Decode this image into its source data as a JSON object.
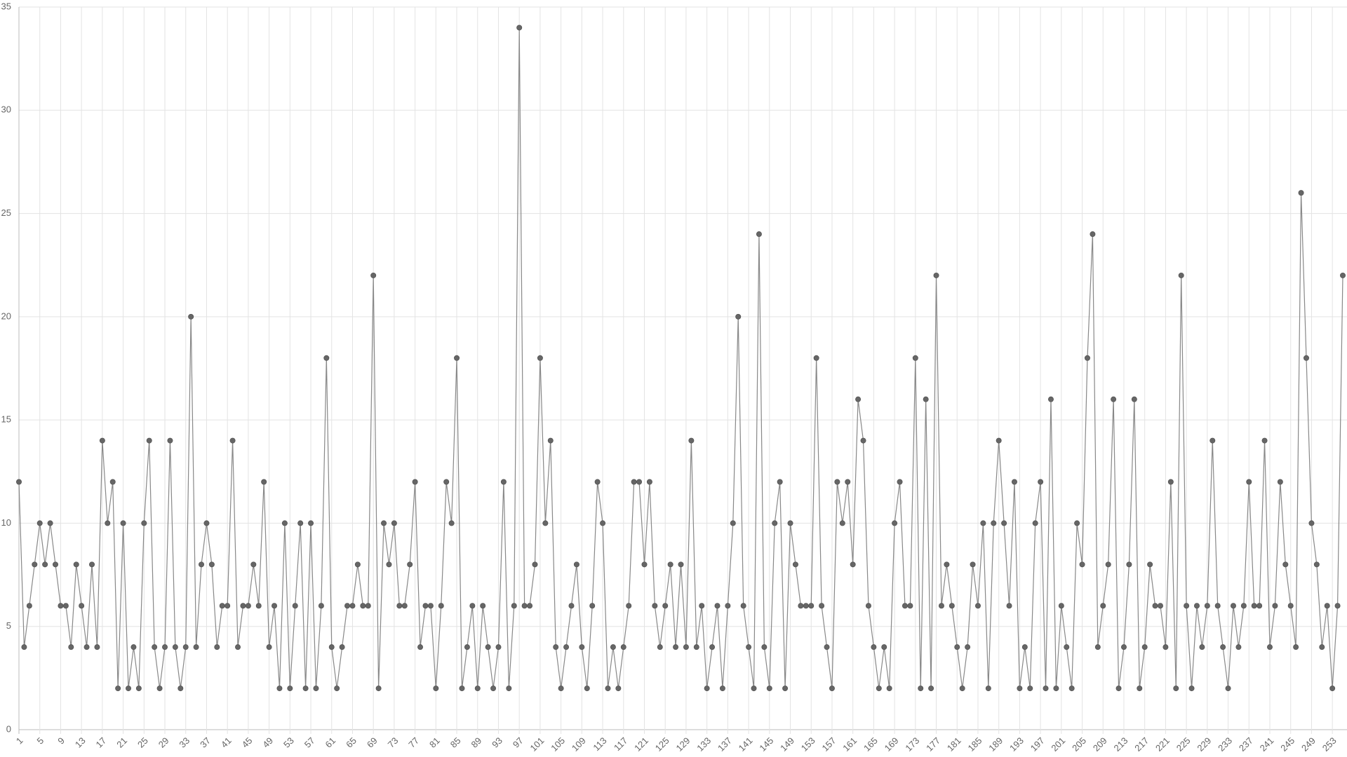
{
  "chart_data": {
    "type": "line",
    "x": [
      1,
      2,
      3,
      4,
      5,
      6,
      7,
      8,
      9,
      10,
      11,
      12,
      13,
      14,
      15,
      16,
      17,
      18,
      19,
      20,
      21,
      22,
      23,
      24,
      25,
      26,
      27,
      28,
      29,
      30,
      31,
      32,
      33,
      34,
      35,
      36,
      37,
      38,
      39,
      40,
      41,
      42,
      43,
      44,
      45,
      46,
      47,
      48,
      49,
      50,
      51,
      52,
      53,
      54,
      55,
      56,
      57,
      58,
      59,
      60,
      61,
      62,
      63,
      64,
      65,
      66,
      67,
      68,
      69,
      70,
      71,
      72,
      73,
      74,
      75,
      76,
      77,
      78,
      79,
      80,
      81,
      82,
      83,
      84,
      85,
      86,
      87,
      88,
      89,
      90,
      91,
      92,
      93,
      94,
      95,
      96,
      97,
      98,
      99,
      100,
      101,
      102,
      103,
      104,
      105,
      106,
      107,
      108,
      109,
      110,
      111,
      112,
      113,
      114,
      115,
      116,
      117,
      118,
      119,
      120,
      121,
      122,
      123,
      124,
      125,
      126,
      127,
      128,
      129,
      130,
      131,
      132,
      133,
      134,
      135,
      136,
      137,
      138,
      139,
      140,
      141,
      142,
      143,
      144,
      145,
      146,
      147,
      148,
      149,
      150,
      151,
      152,
      153,
      154,
      155,
      156,
      157,
      158,
      159,
      160,
      161,
      162,
      163,
      164,
      165,
      166,
      167,
      168,
      169,
      170,
      171,
      172,
      173,
      174,
      175,
      176,
      177,
      178,
      179,
      180,
      181,
      182,
      183,
      184,
      185,
      186,
      187,
      188,
      189,
      190,
      191,
      192,
      193,
      194,
      195,
      196,
      197,
      198,
      199,
      200,
      201,
      202,
      203,
      204,
      205,
      206,
      207,
      208,
      209,
      210,
      211,
      212,
      213,
      214,
      215,
      216,
      217,
      218,
      219,
      220,
      221,
      222,
      223,
      224,
      225,
      226,
      227,
      228,
      229,
      230,
      231,
      232,
      233,
      234,
      235,
      236,
      237,
      238,
      239,
      240,
      241,
      242,
      243,
      244,
      245,
      246,
      247,
      248,
      249,
      250,
      251,
      252,
      253,
      254,
      255
    ],
    "values": [
      12,
      4,
      6,
      8,
      10,
      8,
      10,
      8,
      6,
      6,
      4,
      8,
      6,
      4,
      8,
      4,
      14,
      10,
      12,
      2,
      10,
      2,
      4,
      2,
      10,
      14,
      4,
      2,
      4,
      14,
      4,
      2,
      4,
      20,
      4,
      8,
      10,
      8,
      4,
      6,
      6,
      14,
      4,
      6,
      6,
      8,
      6,
      12,
      4,
      6,
      2,
      10,
      2,
      6,
      10,
      2,
      10,
      2,
      6,
      18,
      4,
      2,
      4,
      6,
      6,
      8,
      6,
      6,
      22,
      2,
      10,
      8,
      10,
      6,
      6,
      8,
      12,
      4,
      6,
      6,
      2,
      6,
      12,
      10,
      18,
      2,
      4,
      6,
      2,
      6,
      4,
      2,
      4,
      12,
      2,
      6,
      34,
      6,
      6,
      8,
      18,
      10,
      14,
      4,
      2,
      4,
      6,
      8,
      4,
      2,
      6,
      12,
      10,
      2,
      4,
      2,
      4,
      6,
      12,
      12,
      8,
      12,
      6,
      4,
      6,
      8,
      4,
      8,
      4,
      14,
      4,
      6,
      2,
      4,
      6,
      2,
      6,
      10,
      20,
      6,
      4,
      2,
      24,
      4,
      2,
      10,
      12,
      2,
      10,
      8,
      6,
      6,
      6,
      18,
      6,
      4,
      2,
      12,
      10,
      12,
      8,
      16,
      14,
      6,
      4,
      2,
      4,
      2,
      10,
      12,
      6,
      6,
      18,
      2,
      16,
      2,
      22,
      6,
      8,
      6,
      4,
      2,
      4,
      8,
      6,
      10,
      2,
      10,
      14,
      10,
      6,
      12,
      2,
      4,
      2,
      10,
      12,
      2,
      16,
      2,
      6,
      4,
      2,
      10,
      8,
      18,
      24,
      4,
      6,
      8,
      16,
      2,
      4,
      8,
      16,
      2,
      4,
      8,
      6,
      6,
      4,
      12,
      2,
      22,
      6,
      2,
      6,
      4,
      6,
      14,
      6,
      4,
      2,
      6,
      4,
      6,
      12,
      6,
      6,
      14,
      4,
      6,
      12,
      8,
      6,
      4,
      26,
      18,
      10,
      8,
      4,
      6,
      2,
      6,
      22
    ],
    "color": "#666666",
    "line_color": "#888888",
    "xlim": [
      1,
      255
    ],
    "xticks": [
      1,
      5,
      9,
      13,
      17,
      21,
      25,
      29,
      33,
      37,
      41,
      45,
      49,
      53,
      57,
      61,
      65,
      69,
      73,
      77,
      81,
      85,
      89,
      93,
      97,
      101,
      105,
      109,
      113,
      117,
      121,
      125,
      129,
      133,
      137,
      141,
      145,
      149,
      153,
      157,
      161,
      165,
      169,
      173,
      177,
      181,
      185,
      189,
      193,
      197,
      201,
      205,
      209,
      213,
      217,
      221,
      225,
      229,
      233,
      237,
      241,
      245,
      249,
      253
    ],
    "ylim": [
      0,
      35
    ],
    "yticks": [
      0,
      5,
      10,
      15,
      20,
      25,
      30,
      35
    ],
    "grid": true
  }
}
